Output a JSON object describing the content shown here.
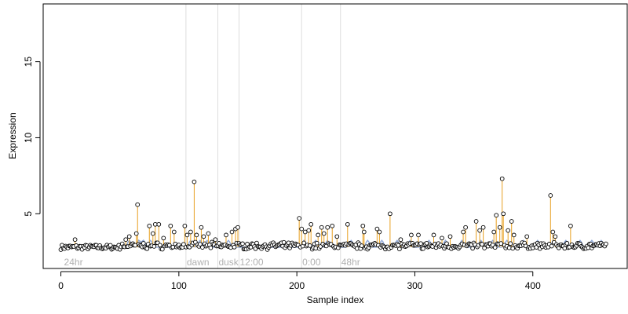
{
  "chart_data": {
    "type": "scatter",
    "title": "",
    "xlabel": "Sample index",
    "ylabel": "Expression",
    "xlim": [
      -15,
      480
    ],
    "ylim": [
      1.4,
      18.8
    ],
    "xticks": [
      0,
      100,
      200,
      300,
      400
    ],
    "yticks": [
      5,
      10,
      15
    ],
    "grid": false,
    "legend": "none",
    "baseline": 2.8,
    "colors": {
      "points": "#000000",
      "point_fill": "#ffffff",
      "stems": "#e8a020",
      "model_curve": "#8fa8d8",
      "segment_lines": "#dddddd",
      "segment_text": "#b0b0b0"
    },
    "segments": [
      {
        "label": "24hr",
        "start": 2
      },
      {
        "label": "dawn",
        "start": 106
      },
      {
        "label": "dusk",
        "start": 133
      },
      {
        "label": "12:00",
        "start": 151
      },
      {
        "label": "0:00",
        "start": 204
      },
      {
        "label": "48hr",
        "start": 237
      }
    ],
    "spikes": [
      {
        "x": 12,
        "y": 3.3
      },
      {
        "x": 55,
        "y": 3.3
      },
      {
        "x": 58,
        "y": 3.5
      },
      {
        "x": 64,
        "y": 3.7
      },
      {
        "x": 65,
        "y": 5.6
      },
      {
        "x": 75,
        "y": 4.2
      },
      {
        "x": 78,
        "y": 3.7
      },
      {
        "x": 80,
        "y": 4.3
      },
      {
        "x": 83,
        "y": 4.3
      },
      {
        "x": 87,
        "y": 3.4
      },
      {
        "x": 93,
        "y": 4.2
      },
      {
        "x": 96,
        "y": 3.8
      },
      {
        "x": 105,
        "y": 4.2
      },
      {
        "x": 107,
        "y": 3.6
      },
      {
        "x": 110,
        "y": 3.8
      },
      {
        "x": 113,
        "y": 7.1
      },
      {
        "x": 115,
        "y": 3.6
      },
      {
        "x": 119,
        "y": 4.1
      },
      {
        "x": 121,
        "y": 3.5
      },
      {
        "x": 125,
        "y": 3.7
      },
      {
        "x": 131,
        "y": 3.3
      },
      {
        "x": 140,
        "y": 3.6
      },
      {
        "x": 145,
        "y": 3.8
      },
      {
        "x": 148,
        "y": 4.0
      },
      {
        "x": 150,
        "y": 4.1
      },
      {
        "x": 202,
        "y": 4.7
      },
      {
        "x": 204,
        "y": 4.0
      },
      {
        "x": 207,
        "y": 3.8
      },
      {
        "x": 210,
        "y": 3.9
      },
      {
        "x": 212,
        "y": 4.3
      },
      {
        "x": 218,
        "y": 3.6
      },
      {
        "x": 221,
        "y": 4.1
      },
      {
        "x": 223,
        "y": 3.7
      },
      {
        "x": 226,
        "y": 4.1
      },
      {
        "x": 230,
        "y": 4.2
      },
      {
        "x": 234,
        "y": 3.5
      },
      {
        "x": 243,
        "y": 4.3
      },
      {
        "x": 256,
        "y": 4.2
      },
      {
        "x": 257,
        "y": 3.8
      },
      {
        "x": 268,
        "y": 4.0
      },
      {
        "x": 270,
        "y": 3.8
      },
      {
        "x": 279,
        "y": 5.0
      },
      {
        "x": 288,
        "y": 3.3
      },
      {
        "x": 297,
        "y": 3.6
      },
      {
        "x": 303,
        "y": 3.6
      },
      {
        "x": 316,
        "y": 3.6
      },
      {
        "x": 323,
        "y": 3.4
      },
      {
        "x": 330,
        "y": 3.5
      },
      {
        "x": 341,
        "y": 3.8
      },
      {
        "x": 343,
        "y": 4.1
      },
      {
        "x": 352,
        "y": 4.5
      },
      {
        "x": 355,
        "y": 3.9
      },
      {
        "x": 358,
        "y": 4.1
      },
      {
        "x": 367,
        "y": 3.8
      },
      {
        "x": 369,
        "y": 4.9
      },
      {
        "x": 372,
        "y": 4.1
      },
      {
        "x": 374,
        "y": 7.3
      },
      {
        "x": 375,
        "y": 5.0
      },
      {
        "x": 379,
        "y": 3.9
      },
      {
        "x": 382,
        "y": 4.5
      },
      {
        "x": 384,
        "y": 3.6
      },
      {
        "x": 395,
        "y": 3.5
      },
      {
        "x": 415,
        "y": 6.2
      },
      {
        "x": 417,
        "y": 3.8
      },
      {
        "x": 419,
        "y": 3.5
      },
      {
        "x": 432,
        "y": 4.2
      }
    ]
  }
}
